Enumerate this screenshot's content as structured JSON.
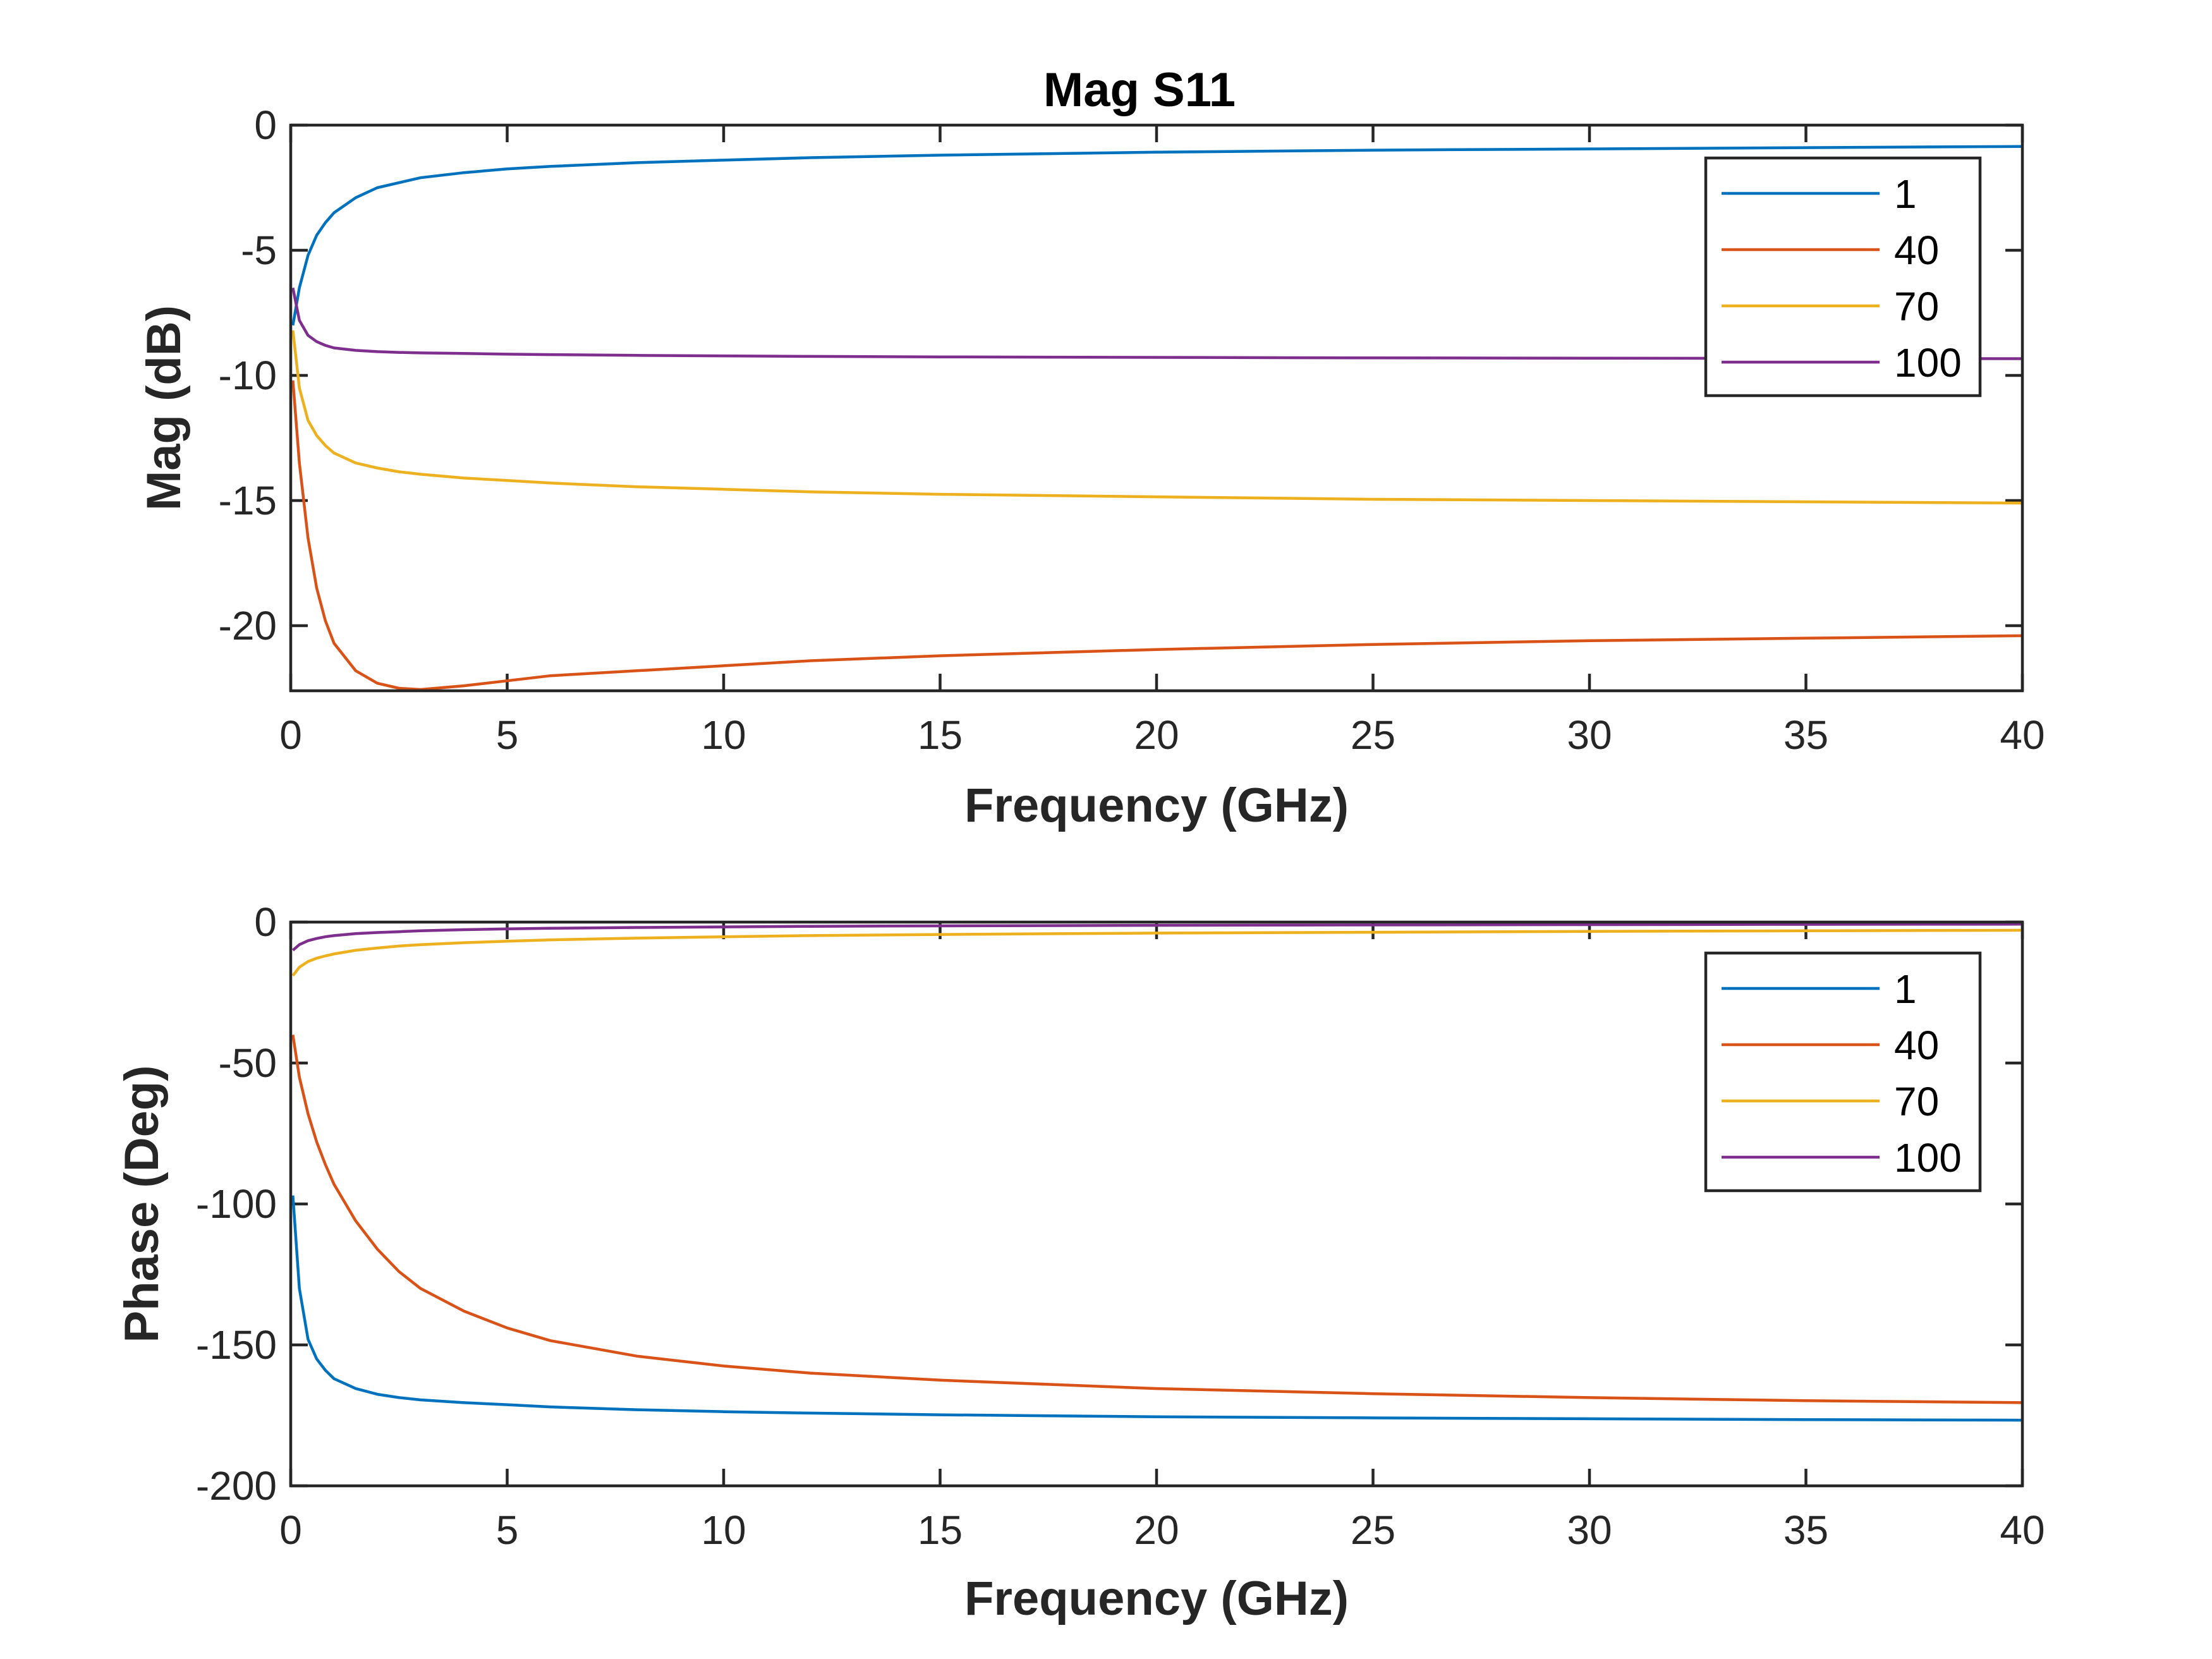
{
  "chart_data": [
    {
      "type": "line",
      "title": "Mag S11",
      "xlabel": "Frequency (GHz)",
      "ylabel": "Mag (dB)",
      "xlim": [
        0,
        40
      ],
      "ylim": [
        -22.6,
        0
      ],
      "xticks": [
        0,
        5,
        10,
        15,
        20,
        25,
        30,
        35,
        40
      ],
      "yticks": [
        0,
        -5,
        -10,
        -15,
        -20
      ],
      "xtick_labels": [
        "0",
        "5",
        "10",
        "15",
        "20",
        "25",
        "30",
        "35",
        "40"
      ],
      "ytick_labels": [
        "0",
        "-5",
        "-10",
        "-15",
        "-20"
      ],
      "legend_position": "top-right",
      "x": [
        0.05,
        0.2,
        0.4,
        0.6,
        0.8,
        1,
        1.5,
        2,
        2.5,
        3,
        4,
        5,
        6,
        8,
        10,
        12,
        15,
        20,
        25,
        30,
        35,
        40
      ],
      "series": [
        {
          "name": "1",
          "color": "#0072BD",
          "values": [
            -8.0,
            -6.5,
            -5.2,
            -4.4,
            -3.9,
            -3.5,
            -2.9,
            -2.5,
            -2.3,
            -2.1,
            -1.9,
            -1.75,
            -1.65,
            -1.5,
            -1.4,
            -1.3,
            -1.2,
            -1.08,
            -1.0,
            -0.95,
            -0.9,
            -0.85
          ]
        },
        {
          "name": "40",
          "color": "#D95319",
          "values": [
            -10.2,
            -13.5,
            -16.5,
            -18.5,
            -19.8,
            -20.7,
            -21.8,
            -22.3,
            -22.5,
            -22.55,
            -22.4,
            -22.2,
            -22.0,
            -21.8,
            -21.6,
            -21.4,
            -21.2,
            -20.95,
            -20.75,
            -20.6,
            -20.5,
            -20.4
          ]
        },
        {
          "name": "70",
          "color": "#EDB120",
          "values": [
            -8.2,
            -10.5,
            -11.8,
            -12.4,
            -12.8,
            -13.1,
            -13.5,
            -13.7,
            -13.85,
            -13.95,
            -14.1,
            -14.2,
            -14.3,
            -14.45,
            -14.55,
            -14.65,
            -14.75,
            -14.85,
            -14.95,
            -15.0,
            -15.05,
            -15.1
          ]
        },
        {
          "name": "100",
          "color": "#7E2F8E",
          "values": [
            -6.5,
            -7.8,
            -8.4,
            -8.65,
            -8.8,
            -8.9,
            -9.0,
            -9.05,
            -9.08,
            -9.1,
            -9.12,
            -9.15,
            -9.17,
            -9.2,
            -9.22,
            -9.24,
            -9.26,
            -9.28,
            -9.3,
            -9.31,
            -9.32,
            -9.33
          ]
        }
      ]
    },
    {
      "type": "line",
      "title": "",
      "xlabel": "Frequency (GHz)",
      "ylabel": "Phase (Deg)",
      "xlim": [
        0,
        40
      ],
      "ylim": [
        -200,
        0
      ],
      "xticks": [
        0,
        5,
        10,
        15,
        20,
        25,
        30,
        35,
        40
      ],
      "yticks": [
        0,
        -50,
        -100,
        -150,
        -200
      ],
      "xtick_labels": [
        "0",
        "5",
        "10",
        "15",
        "20",
        "25",
        "30",
        "35",
        "40"
      ],
      "ytick_labels": [
        "0",
        "-50",
        "-100",
        "-150",
        "-200"
      ],
      "legend_position": "top-right",
      "x": [
        0.05,
        0.2,
        0.4,
        0.6,
        0.8,
        1,
        1.5,
        2,
        2.5,
        3,
        4,
        5,
        6,
        8,
        10,
        12,
        15,
        20,
        25,
        30,
        35,
        40
      ],
      "series": [
        {
          "name": "1",
          "color": "#0072BD",
          "values": [
            -97,
            -130,
            -148,
            -155,
            -159,
            -162,
            -165.5,
            -167.5,
            -168.7,
            -169.5,
            -170.5,
            -171.2,
            -172,
            -173,
            -173.7,
            -174.2,
            -174.8,
            -175.5,
            -175.9,
            -176.2,
            -176.5,
            -176.7
          ]
        },
        {
          "name": "40",
          "color": "#D95319",
          "values": [
            -40,
            -55,
            -68,
            -78,
            -86,
            -93,
            -106,
            -116,
            -124,
            -130,
            -138,
            -144,
            -148.5,
            -154,
            -157.5,
            -160,
            -162.5,
            -165.5,
            -167.3,
            -168.7,
            -169.8,
            -170.5
          ]
        },
        {
          "name": "70",
          "color": "#EDB120",
          "values": [
            -19,
            -16,
            -14,
            -12.8,
            -12,
            -11.3,
            -10,
            -9.2,
            -8.5,
            -8,
            -7.3,
            -6.8,
            -6.3,
            -5.7,
            -5.2,
            -4.8,
            -4.4,
            -3.9,
            -3.6,
            -3.3,
            -3.1,
            -2.9
          ]
        },
        {
          "name": "100",
          "color": "#7E2F8E",
          "values": [
            -10,
            -8,
            -6.6,
            -5.8,
            -5.2,
            -4.8,
            -4.1,
            -3.7,
            -3.4,
            -3.1,
            -2.7,
            -2.4,
            -2.2,
            -1.9,
            -1.7,
            -1.5,
            -1.35,
            -1.15,
            -1.0,
            -0.9,
            -0.8,
            -0.75
          ]
        }
      ]
    }
  ]
}
